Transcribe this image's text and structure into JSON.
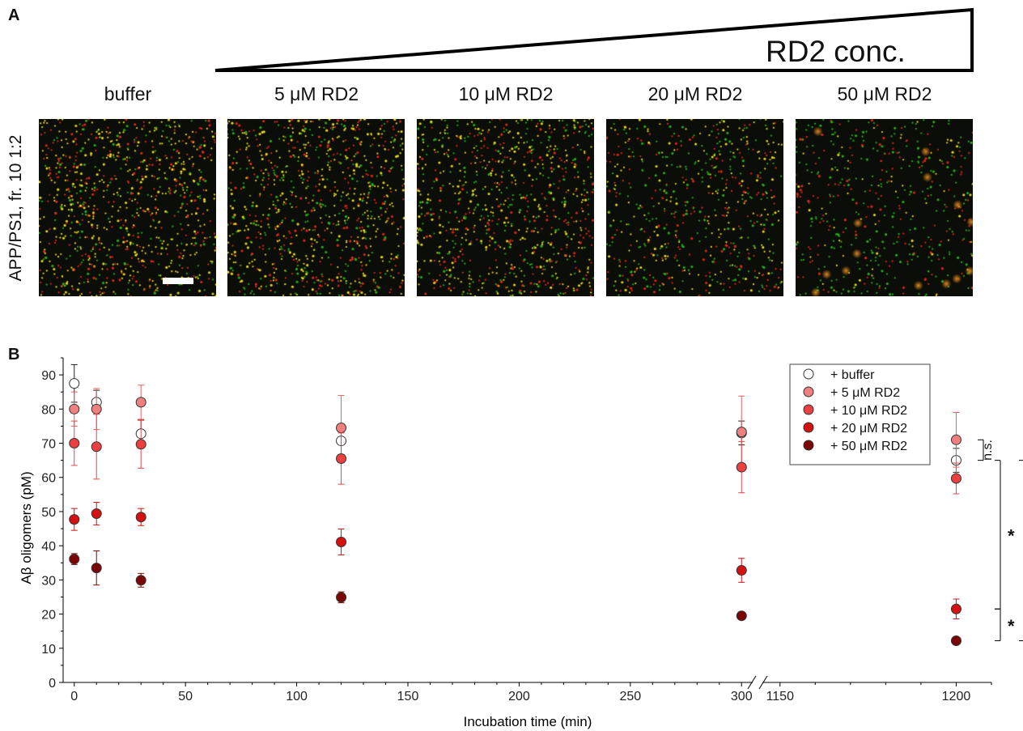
{
  "panel_labels": {
    "a": "A",
    "b": "B"
  },
  "panel_a": {
    "gradient_label": "RD2 conc.",
    "row_label": "APP/PS1, fr. 10 1:2",
    "columns": [
      {
        "title": "buffer",
        "density": 1.0,
        "yellow_ratio": 0.5
      },
      {
        "title": "5 μM RD2",
        "density": 1.0,
        "yellow_ratio": 0.45
      },
      {
        "title": "10 μM RD2",
        "density": 0.95,
        "yellow_ratio": 0.42
      },
      {
        "title": "20 μM RD2",
        "density": 0.7,
        "yellow_ratio": 0.35
      },
      {
        "title": "50 μM RD2",
        "density": 0.55,
        "yellow_ratio": 0.15
      }
    ]
  },
  "chart_data": {
    "type": "scatter",
    "xlabel": "Incubation time (min)",
    "ylabel": "Aβ oligomers (pM)",
    "ylim": [
      0,
      95
    ],
    "x_broken_axis": {
      "segment1": [
        -5,
        305
      ],
      "segment2": [
        1145,
        1210
      ]
    },
    "x_ticks": [
      0,
      50,
      100,
      150,
      200,
      250,
      300,
      1150,
      1200
    ],
    "y_ticks": [
      0,
      10,
      20,
      30,
      40,
      50,
      60,
      70,
      80,
      90
    ],
    "legend_position": "top-right",
    "series": [
      {
        "name": "+ buffer",
        "fill": "#ffffff",
        "err_color": "#222222",
        "points": [
          {
            "x": 0,
            "y": 87.5,
            "err": 5.5
          },
          {
            "x": 10,
            "y": 82,
            "err": 3.5
          },
          {
            "x": 30,
            "y": 72.8,
            "err": 4
          },
          {
            "x": 120,
            "y": 70.7,
            "err": 4
          },
          {
            "x": 300,
            "y": 73,
            "err": 3.5
          },
          {
            "x": 1200,
            "y": 65,
            "err": 3.5
          }
        ]
      },
      {
        "name": "+ 5 μM RD2",
        "fill": "#f08080",
        "err_color": "#e8615f",
        "points": [
          {
            "x": 0,
            "y": 80,
            "err": 5
          },
          {
            "x": 10,
            "y": 80,
            "err": 6
          },
          {
            "x": 30,
            "y": 82,
            "err": 5
          },
          {
            "x": 120,
            "y": 74.5,
            "err": 9.5
          },
          {
            "x": 300,
            "y": 73.3,
            "err": 10.5
          },
          {
            "x": 1200,
            "y": 71,
            "err": 8
          }
        ]
      },
      {
        "name": "+ 10 μM RD2",
        "fill": "#ec4040",
        "err_color": "#e84545",
        "points": [
          {
            "x": 0,
            "y": 70,
            "err": 6.5
          },
          {
            "x": 10,
            "y": 69,
            "err": 9.5
          },
          {
            "x": 30,
            "y": 69.7,
            "err": 7
          },
          {
            "x": 120,
            "y": 65.5,
            "err": 7.5
          },
          {
            "x": 300,
            "y": 63,
            "err": 7.5
          },
          {
            "x": 1200,
            "y": 59.7,
            "err": 4.5
          }
        ]
      },
      {
        "name": "+ 20 μM RD2",
        "fill": "#d41010",
        "err_color": "#d41010",
        "points": [
          {
            "x": 0,
            "y": 47.7,
            "err": 3.2
          },
          {
            "x": 10,
            "y": 49.4,
            "err": 3.3
          },
          {
            "x": 30,
            "y": 48.4,
            "err": 2.5
          },
          {
            "x": 120,
            "y": 41.1,
            "err": 3.8
          },
          {
            "x": 300,
            "y": 32.8,
            "err": 3.5
          },
          {
            "x": 1200,
            "y": 21.5,
            "err": 2.9
          }
        ]
      },
      {
        "name": "+ 50 μM RD2",
        "fill": "#7a0606",
        "err_color": "#7a0606",
        "points": [
          {
            "x": 0,
            "y": 36.1,
            "err": 1.6
          },
          {
            "x": 10,
            "y": 33.5,
            "err": 5
          },
          {
            "x": 30,
            "y": 29.9,
            "err": 2
          },
          {
            "x": 120,
            "y": 24.9,
            "err": 1.6
          },
          {
            "x": 300,
            "y": 19.5,
            "err": 0.6
          },
          {
            "x": 1200,
            "y": 12.2,
            "err": 0.6
          }
        ]
      }
    ],
    "significance": [
      {
        "label": "n.s.",
        "y1": 65,
        "y2": 71
      },
      {
        "label": "*",
        "y1": 21.5,
        "y2": 65
      },
      {
        "label": "*",
        "y1": 12.2,
        "y2": 21.5
      }
    ]
  }
}
